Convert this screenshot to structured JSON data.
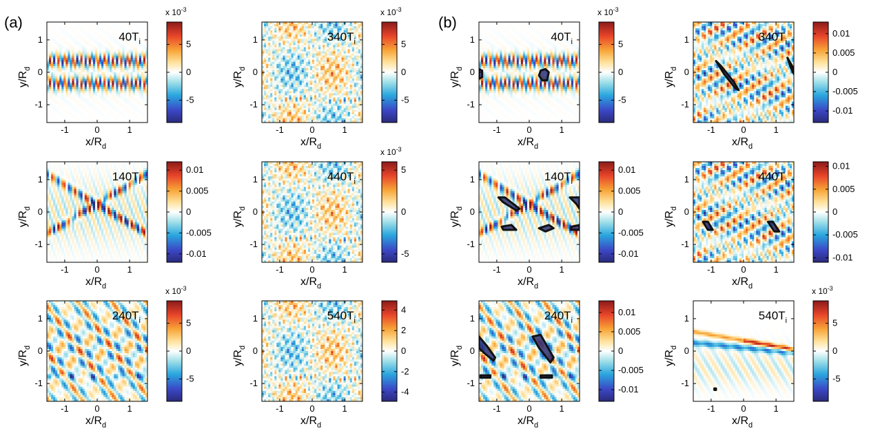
{
  "groups": [
    {
      "label": "(a)"
    },
    {
      "label": "(b)"
    }
  ],
  "chart_data": [
    {
      "group": "(a)",
      "type": "heatmap",
      "time_label": "40T",
      "time_subscript": "i",
      "xlabel": "x/R",
      "xlabel_sub": "d",
      "ylabel": "y/R",
      "ylabel_sub": "d",
      "xlim": [
        -1.55,
        1.55
      ],
      "ylim": [
        -1.55,
        1.55
      ],
      "xticks": [
        "-1",
        "0",
        "1"
      ],
      "yticks": [
        "1",
        "0",
        "-1"
      ],
      "colorbar": {
        "multiplier": "x 10",
        "exponent": "-3",
        "range": [
          -0.009,
          0.009
        ],
        "ticks": [
          "5",
          "0",
          "-5"
        ]
      },
      "pattern": "bands",
      "contours": []
    },
    {
      "group": "(a)",
      "type": "heatmap",
      "time_label": "340T",
      "time_subscript": "i",
      "xlabel": "x/R",
      "xlabel_sub": "d",
      "ylabel": "y/R",
      "ylabel_sub": "d",
      "xlim": [
        -1.55,
        1.55
      ],
      "ylim": [
        -1.55,
        1.55
      ],
      "xticks": [
        "-1",
        "0",
        "1"
      ],
      "yticks": [
        "1",
        "0",
        "-1"
      ],
      "colorbar": {
        "multiplier": "x 10",
        "exponent": "-3",
        "range": [
          -0.009,
          0.009
        ],
        "ticks": [
          "5",
          "0",
          "-5"
        ]
      },
      "pattern": "turbulent",
      "contours": []
    },
    {
      "group": "(b)",
      "type": "heatmap",
      "time_label": "40T",
      "time_subscript": "i",
      "xlabel": "x/R",
      "xlabel_sub": "d",
      "ylabel": "y/R",
      "ylabel_sub": "d",
      "xlim": [
        -1.55,
        1.55
      ],
      "ylim": [
        -1.55,
        1.55
      ],
      "xticks": [
        "-1",
        "0",
        "1"
      ],
      "yticks": [
        "1",
        "0",
        "-1"
      ],
      "colorbar": {
        "multiplier": "x 10",
        "exponent": "-3",
        "range": [
          -0.009,
          0.009
        ],
        "ticks": [
          "5",
          "0",
          "-5"
        ]
      },
      "pattern": "bands",
      "contours": [
        [
          [
            -1.55,
            0.1
          ],
          [
            -1.45,
            0.05
          ],
          [
            -1.45,
            -0.15
          ],
          [
            -1.55,
            -0.2
          ]
        ],
        [
          [
            0.35,
            0.05
          ],
          [
            0.5,
            0.1
          ],
          [
            0.6,
            0
          ],
          [
            0.55,
            -0.25
          ],
          [
            0.4,
            -0.25
          ],
          [
            0.3,
            -0.1
          ]
        ]
      ]
    },
    {
      "group": "(b)",
      "type": "heatmap",
      "time_label": "340T",
      "time_subscript": "i",
      "xlabel": "x/R",
      "xlabel_sub": "d",
      "ylabel": "y/R",
      "ylabel_sub": "d",
      "xlim": [
        -1.55,
        1.55
      ],
      "ylim": [
        -1.55,
        1.55
      ],
      "xticks": [
        "-1",
        "0",
        "1"
      ],
      "yticks": [
        "1",
        "0",
        "-1"
      ],
      "colorbar": {
        "range": [
          -0.013,
          0.013
        ],
        "ticks": [
          "0.01",
          "0.005",
          "0",
          "-0.005",
          "-0.01"
        ]
      },
      "pattern": "diagonal",
      "contours": [
        [
          [
            -0.85,
            0.35
          ],
          [
            -0.7,
            0.2
          ],
          [
            -0.3,
            -0.3
          ],
          [
            -0.15,
            -0.55
          ],
          [
            -0.25,
            -0.5
          ],
          [
            -0.6,
            -0.05
          ]
        ],
        [
          [
            1.35,
            0.45
          ],
          [
            1.55,
            0.1
          ],
          [
            1.55,
            -0.05
          ],
          [
            1.45,
            0.15
          ]
        ]
      ]
    },
    {
      "group": "(a)",
      "type": "heatmap",
      "time_label": "140T",
      "time_subscript": "i",
      "xlabel": "x/R",
      "xlabel_sub": "d",
      "ylabel": "y/R",
      "ylabel_sub": "d",
      "xlim": [
        -1.55,
        1.55
      ],
      "ylim": [
        -1.55,
        1.55
      ],
      "xticks": [
        "-1",
        "0",
        "1"
      ],
      "yticks": [
        "1",
        "0",
        "-1"
      ],
      "colorbar": {
        "range": [
          -0.012,
          0.012
        ],
        "ticks": [
          "0.01",
          "0.005",
          "0",
          "-0.005",
          "-0.01"
        ]
      },
      "pattern": "crossing",
      "contours": []
    },
    {
      "group": "(a)",
      "type": "heatmap",
      "time_label": "440T",
      "time_subscript": "i",
      "xlabel": "x/R",
      "xlabel_sub": "d",
      "ylabel": "y/R",
      "ylabel_sub": "d",
      "xlim": [
        -1.55,
        1.55
      ],
      "ylim": [
        -1.55,
        1.55
      ],
      "xticks": [
        "-1",
        "0",
        "1"
      ],
      "yticks": [
        "1",
        "0",
        "-1"
      ],
      "colorbar": {
        "multiplier": "x 10",
        "exponent": "-3",
        "range": [
          -0.006,
          0.006
        ],
        "ticks": [
          "5",
          "0",
          "-5"
        ]
      },
      "pattern": "turbulent",
      "contours": []
    },
    {
      "group": "(b)",
      "type": "heatmap",
      "time_label": "140T",
      "time_subscript": "i",
      "xlabel": "x/R",
      "xlabel_sub": "d",
      "ylabel": "y/R",
      "ylabel_sub": "d",
      "xlim": [
        -1.55,
        1.55
      ],
      "ylim": [
        -1.55,
        1.55
      ],
      "xticks": [
        "-1",
        "0",
        "1"
      ],
      "yticks": [
        "1",
        "0",
        "-1"
      ],
      "colorbar": {
        "range": [
          -0.012,
          0.012
        ],
        "ticks": [
          "0.01",
          "0.005",
          "0",
          "-0.005",
          "-0.01"
        ]
      },
      "pattern": "crossing",
      "contours": [
        [
          [
            -0.95,
            0.45
          ],
          [
            -0.75,
            0.45
          ],
          [
            -0.3,
            0.1
          ],
          [
            -0.4,
            0.05
          ],
          [
            -0.8,
            0.3
          ]
        ],
        [
          [
            -0.85,
            -0.45
          ],
          [
            -0.55,
            -0.4
          ],
          [
            -0.4,
            -0.55
          ],
          [
            -0.8,
            -0.55
          ]
        ],
        [
          [
            0.3,
            -0.5
          ],
          [
            0.6,
            -0.4
          ],
          [
            0.75,
            -0.5
          ],
          [
            0.5,
            -0.6
          ]
        ],
        [
          [
            1.25,
            0.45
          ],
          [
            1.55,
            0.45
          ],
          [
            1.55,
            0.1
          ],
          [
            1.45,
            0.25
          ]
        ],
        [
          [
            1.3,
            -0.45
          ],
          [
            1.55,
            -0.4
          ],
          [
            1.55,
            -0.55
          ],
          [
            1.3,
            -0.55
          ]
        ]
      ]
    },
    {
      "group": "(b)",
      "type": "heatmap",
      "time_label": "440T",
      "time_subscript": "i",
      "xlabel": "x/R",
      "xlabel_sub": "d",
      "ylabel": "y/R",
      "ylabel_sub": "d",
      "xlim": [
        -1.55,
        1.55
      ],
      "ylim": [
        -1.55,
        1.55
      ],
      "xticks": [
        "-1",
        "0",
        "1"
      ],
      "yticks": [
        "1",
        "0",
        "-1"
      ],
      "colorbar": {
        "range": [
          -0.011,
          0.011
        ],
        "ticks": [
          "0.01",
          "0.005",
          "0",
          "-0.005",
          "-0.01"
        ]
      },
      "pattern": "diagonal",
      "contours": [
        [
          [
            -1.25,
            -0.3
          ],
          [
            -1.1,
            -0.3
          ],
          [
            -0.95,
            -0.55
          ],
          [
            -1.1,
            -0.55
          ]
        ],
        [
          [
            0.75,
            -0.3
          ],
          [
            0.9,
            -0.3
          ],
          [
            1.1,
            -0.6
          ],
          [
            0.95,
            -0.6
          ]
        ]
      ]
    },
    {
      "group": "(a)",
      "type": "heatmap",
      "time_label": "240T",
      "time_subscript": "i",
      "xlabel": "x/R",
      "xlabel_sub": "d",
      "ylabel": "y/R",
      "ylabel_sub": "d",
      "xlim": [
        -1.55,
        1.55
      ],
      "ylim": [
        -1.55,
        1.55
      ],
      "xticks": [
        "-1",
        "0",
        "1"
      ],
      "yticks": [
        "1",
        "0",
        "-1"
      ],
      "colorbar": {
        "multiplier": "x 10",
        "exponent": "-3",
        "range": [
          -0.009,
          0.009
        ],
        "ticks": [
          "5",
          "0",
          "-5"
        ]
      },
      "pattern": "waves",
      "contours": []
    },
    {
      "group": "(a)",
      "type": "heatmap",
      "time_label": "540T",
      "time_subscript": "i",
      "xlabel": "x/R",
      "xlabel_sub": "d",
      "ylabel": "y/R",
      "ylabel_sub": "d",
      "xlim": [
        -1.55,
        1.55
      ],
      "ylim": [
        -1.55,
        1.55
      ],
      "xticks": [
        "-1",
        "0",
        "1"
      ],
      "yticks": [
        "1",
        "0",
        "-1"
      ],
      "colorbar": {
        "range": [
          -4.9,
          4.9
        ],
        "ticks": [
          "4",
          "2",
          "0",
          "-2",
          "-4"
        ]
      },
      "pattern": "turbulent",
      "contours": []
    },
    {
      "group": "(b)",
      "type": "heatmap",
      "time_label": "240T",
      "time_subscript": "i",
      "xlabel": "x/R",
      "xlabel_sub": "d",
      "ylabel": "y/R",
      "ylabel_sub": "d",
      "xlim": [
        -1.55,
        1.55
      ],
      "ylim": [
        -1.55,
        1.55
      ],
      "xticks": [
        "-1",
        "0",
        "1"
      ],
      "yticks": [
        "1",
        "0",
        "-1"
      ],
      "colorbar": {
        "range": [
          -0.013,
          0.013
        ],
        "ticks": [
          "0.01",
          "0.005",
          "0",
          "-0.005",
          "-0.01"
        ]
      },
      "pattern": "waves",
      "contours": [
        [
          [
            -1.55,
            0.45
          ],
          [
            -1.3,
            0.15
          ],
          [
            -1.05,
            -0.2
          ],
          [
            -1.1,
            -0.3
          ],
          [
            -1.4,
            -0.05
          ],
          [
            -1.55,
            0.1
          ]
        ],
        [
          [
            0.1,
            0.45
          ],
          [
            0.35,
            0.5
          ],
          [
            0.75,
            -0.2
          ],
          [
            0.65,
            -0.35
          ],
          [
            0.3,
            0.1
          ]
        ],
        [
          [
            -1.5,
            -0.75
          ],
          [
            -1.2,
            -0.75
          ],
          [
            -1.2,
            -0.82
          ],
          [
            -1.5,
            -0.82
          ]
        ],
        [
          [
            0.35,
            -0.75
          ],
          [
            0.7,
            -0.75
          ],
          [
            0.7,
            -0.82
          ],
          [
            0.35,
            -0.82
          ]
        ]
      ]
    },
    {
      "group": "(b)",
      "type": "heatmap",
      "time_label": "540T",
      "time_subscript": "i",
      "xlabel": "x/R",
      "xlabel_sub": "d",
      "ylabel": "y/R",
      "ylabel_sub": "d",
      "xlim": [
        -1.55,
        1.55
      ],
      "ylim": [
        -1.55,
        1.55
      ],
      "xticks": [
        "-1",
        "0",
        "1"
      ],
      "yticks": [
        "1",
        "0",
        "-1"
      ],
      "colorbar": {
        "multiplier": "x 10",
        "exponent": "-3",
        "range": [
          -0.009,
          0.009
        ],
        "ticks": [
          "5",
          "0",
          "-5"
        ]
      },
      "pattern": "stripe",
      "contours": [
        [
          [
            -0.9,
            -1.15
          ],
          [
            -0.85,
            -1.15
          ],
          [
            -0.85,
            -1.2
          ],
          [
            -0.9,
            -1.2
          ]
        ]
      ]
    }
  ]
}
